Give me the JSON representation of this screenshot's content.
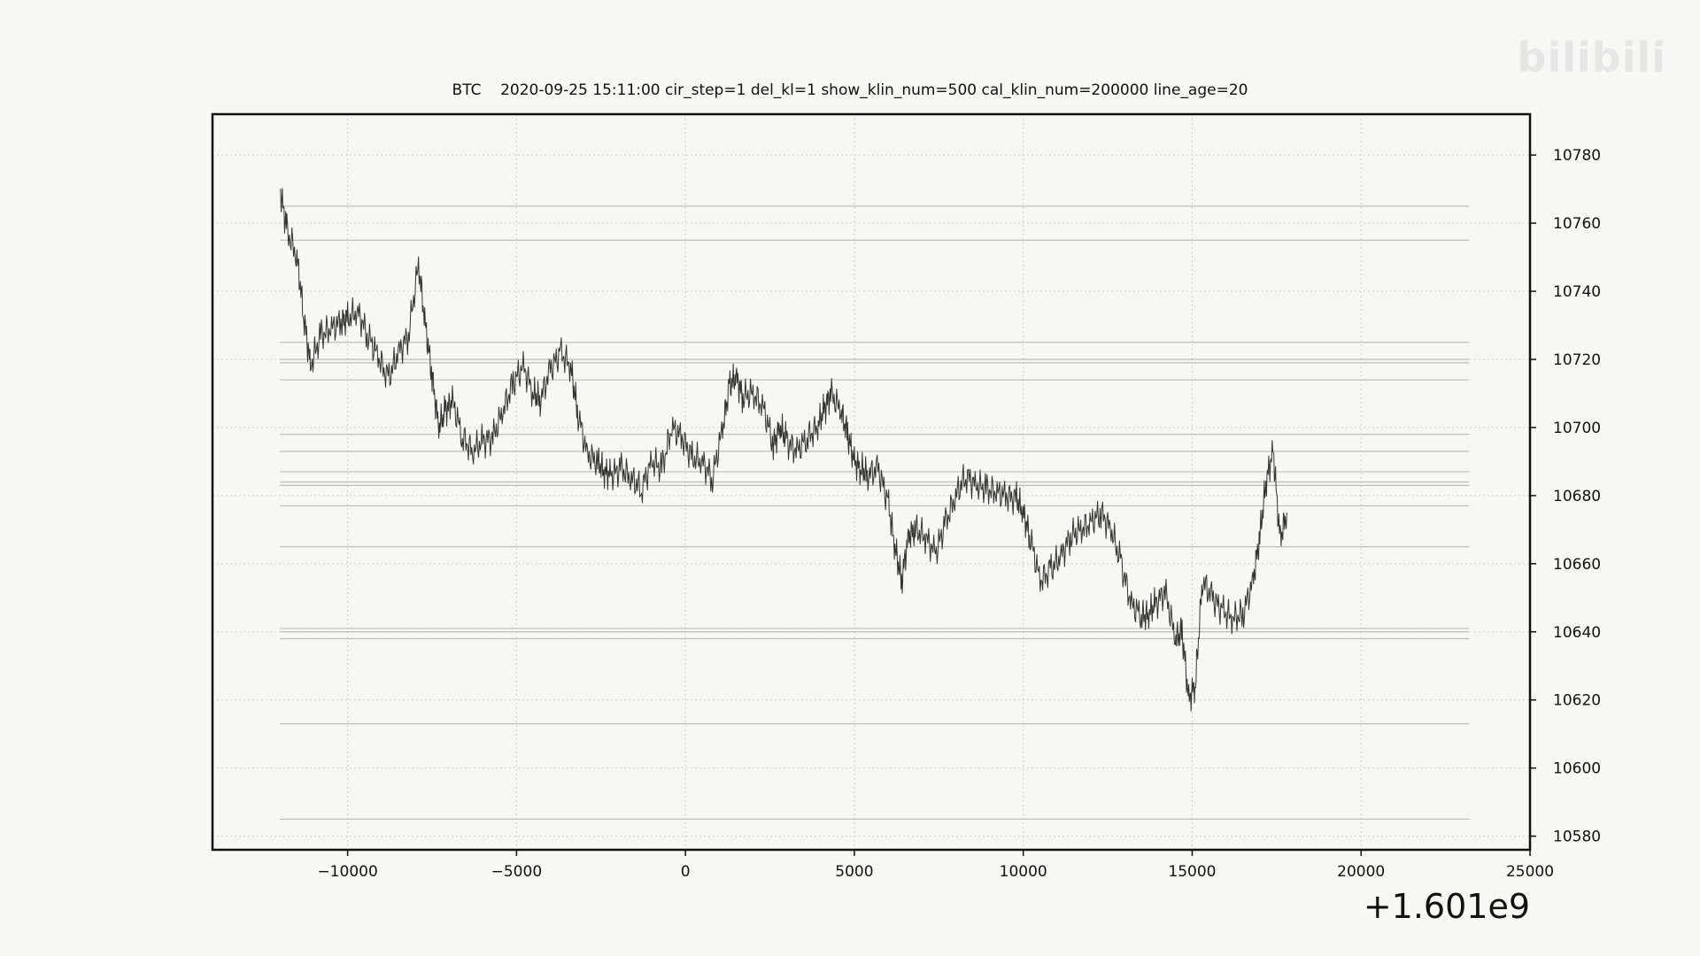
{
  "chart_data": {
    "type": "line",
    "title": "BTC    2020-09-25 15:11:00 cir_step=1 del_kl=1 show_klin_num=500 cal_klin_num=200000 line_age=20",
    "xlabel": "",
    "ylabel": "",
    "x_offset_label": "+1.601e9",
    "xlim": [
      -14000,
      25000
    ],
    "ylim": [
      10576,
      10792
    ],
    "xticks": [
      -10000,
      -5000,
      0,
      5000,
      10000,
      15000,
      20000,
      25000
    ],
    "xtick_labels": [
      "−10000",
      "−5000",
      "0",
      "5000",
      "10000",
      "15000",
      "20000",
      "25000"
    ],
    "yticks": [
      10580,
      10600,
      10620,
      10640,
      10660,
      10680,
      10700,
      10720,
      10740,
      10760,
      10780
    ],
    "ytick_labels": [
      "10580",
      "10600",
      "10620",
      "10640",
      "10660",
      "10680",
      "10700",
      "10720",
      "10740",
      "10760",
      "10780"
    ],
    "grid": true,
    "y_axis_side": "right",
    "series": [
      {
        "x": [
          -12000,
          -11800,
          -11500,
          -11300,
          -11100,
          -10800,
          -10500,
          -10200,
          -10000,
          -9700,
          -9400,
          -9100,
          -8800,
          -8500,
          -8200,
          -7900,
          -7700,
          -7500,
          -7300,
          -7100,
          -6900,
          -6600,
          -6300,
          -6000,
          -5700,
          -5400,
          -5100,
          -4800,
          -4500,
          -4300,
          -4000,
          -3700,
          -3400,
          -3200,
          -2900,
          -2600,
          -2400,
          -2200,
          -1900,
          -1600,
          -1300,
          -1000,
          -700,
          -400,
          -100,
          200,
          500,
          800,
          1100,
          1300,
          1500,
          1700,
          2000,
          2300,
          2600,
          2800,
          3000,
          3300,
          3600,
          3900,
          4100,
          4300,
          4600,
          4800,
          5000,
          5200,
          5400,
          5700,
          6000,
          6200,
          6400,
          6600,
          6800,
          7100,
          7400,
          7700,
          8000,
          8300,
          8600,
          8900,
          9200,
          9500,
          9800,
          10000,
          10200,
          10500,
          10800,
          11100,
          11400,
          11700,
          12000,
          12300,
          12600,
          12900,
          13200,
          13500,
          13700,
          13900,
          14200,
          14500,
          14700,
          14900,
          15100,
          15300,
          15600,
          15900,
          16200,
          16500,
          16800,
          17000,
          17200,
          17400,
          17600,
          17800
        ],
        "values": [
          10770,
          10758,
          10750,
          10733,
          10718,
          10727,
          10729,
          10731,
          10732,
          10734,
          10727,
          10721,
          10714,
          10722,
          10727,
          10748,
          10730,
          10715,
          10700,
          10705,
          10708,
          10697,
          10693,
          10696,
          10697,
          10705,
          10713,
          10718,
          10710,
          10708,
          10717,
          10722,
          10718,
          10705,
          10692,
          10690,
          10687,
          10686,
          10688,
          10685,
          10682,
          10690,
          10688,
          10700,
          10697,
          10691,
          10690,
          10685,
          10700,
          10712,
          10715,
          10709,
          10710,
          10706,
          10695,
          10700,
          10696,
          10693,
          10697,
          10700,
          10705,
          10710,
          10705,
          10698,
          10690,
          10688,
          10686,
          10688,
          10678,
          10665,
          10655,
          10668,
          10670,
          10668,
          10663,
          10672,
          10680,
          10686,
          10683,
          10682,
          10681,
          10680,
          10679,
          10675,
          10668,
          10655,
          10658,
          10662,
          10668,
          10670,
          10672,
          10675,
          10670,
          10660,
          10648,
          10645,
          10645,
          10648,
          10652,
          10638,
          10640,
          10620,
          10625,
          10655,
          10650,
          10646,
          10644,
          10645,
          10655,
          10668,
          10685,
          10693,
          10667,
          10675
        ]
      }
    ],
    "hlines": [
      10765,
      10755,
      10725,
      10720,
      10719,
      10714,
      10698,
      10693,
      10687,
      10684,
      10683,
      10677,
      10665,
      10641,
      10640,
      10638,
      10613,
      10585
    ]
  }
}
